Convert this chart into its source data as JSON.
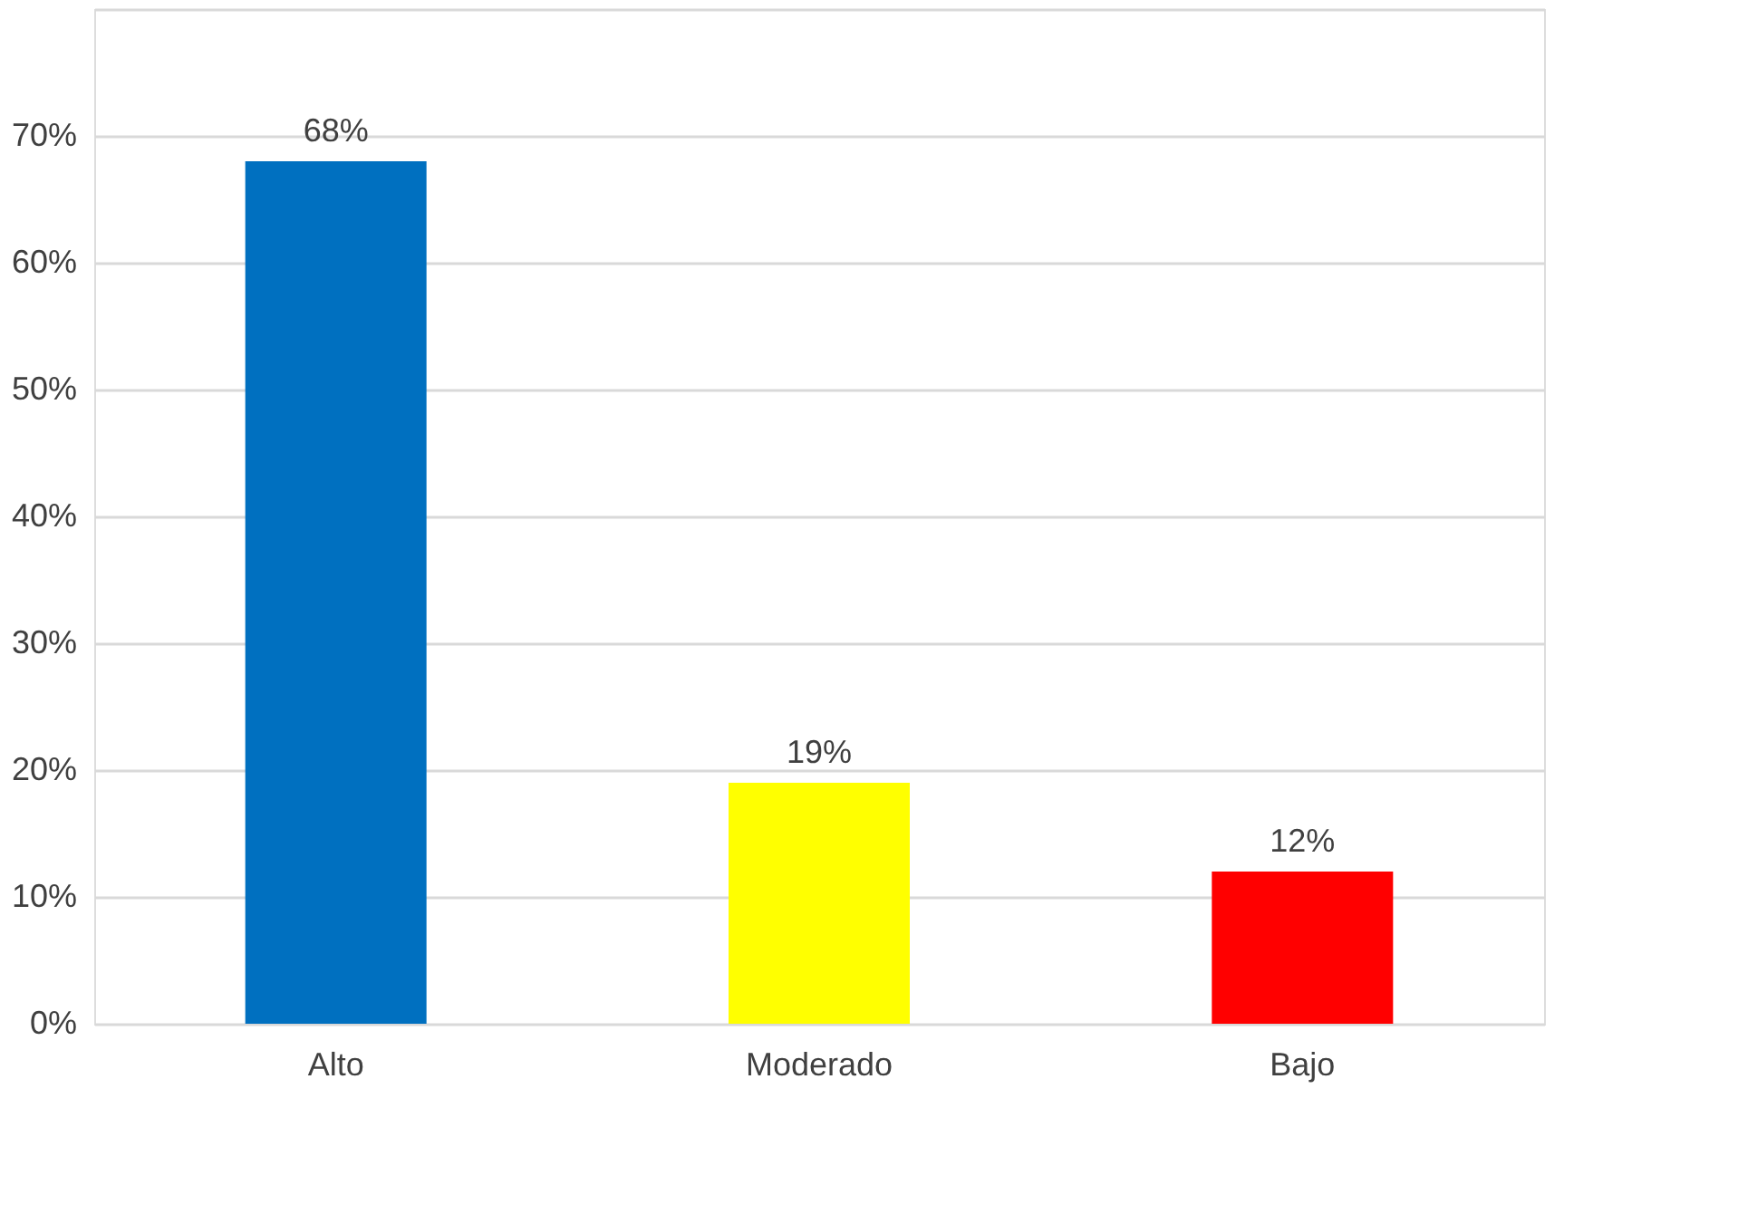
{
  "chart_data": {
    "type": "bar",
    "categories": [
      "Alto",
      "Moderado",
      "Bajo"
    ],
    "values": [
      68,
      19,
      12
    ],
    "colors": [
      "#0070c0",
      "#ffff00",
      "#ff0000"
    ],
    "value_labels": [
      "68%",
      "19%",
      "12%"
    ],
    "ylim": [
      0,
      80
    ],
    "yticks": [
      {
        "value": 0,
        "label": "0%"
      },
      {
        "value": 10,
        "label": "10%"
      },
      {
        "value": 20,
        "label": "20%"
      },
      {
        "value": 30,
        "label": "30%"
      },
      {
        "value": 40,
        "label": "40%"
      },
      {
        "value": 50,
        "label": "50%"
      },
      {
        "value": 60,
        "label": "60%"
      },
      {
        "value": 70,
        "label": "70%"
      },
      {
        "value": 80,
        "label": null
      }
    ],
    "grid": "y",
    "legend": false
  }
}
